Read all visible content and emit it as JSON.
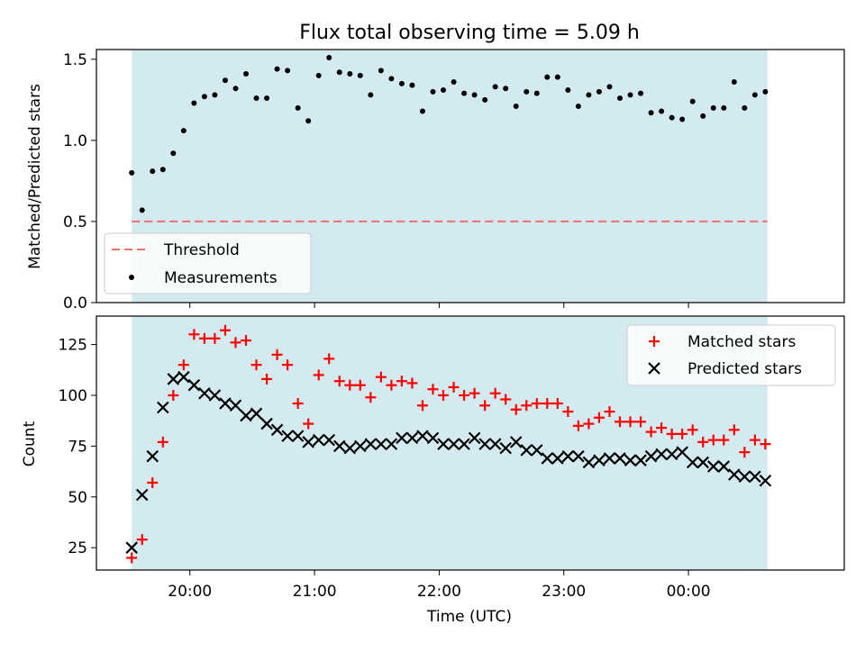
{
  "colors": {
    "shade": "#d4eaf1",
    "threshold": "#f07070",
    "measurements": "#000000",
    "matched": "#ff0000",
    "predicted": "#000000"
  },
  "chart_data": [
    {
      "type": "scatter",
      "title": "Flux total observing time = 5.09 h",
      "xlabel": "",
      "ylabel": "Matched/Predicted stars",
      "xlim": [
        "19:15",
        "01:15"
      ],
      "ylim": [
        0,
        1.56
      ],
      "shaded_span": [
        "19:32",
        "00:38"
      ],
      "yticks": [
        "0.0",
        "0.5",
        "1.0",
        "1.5"
      ],
      "legend_placement": "lower-left",
      "threshold": {
        "name": "Threshold",
        "value": 0.5
      },
      "series": [
        {
          "name": "Measurements",
          "x": [
            "19:32",
            "19:37",
            "19:42",
            "19:47",
            "19:52",
            "19:57",
            "20:02",
            "20:07",
            "20:12",
            "20:17",
            "20:22",
            "20:27",
            "20:32",
            "20:37",
            "20:42",
            "20:47",
            "20:52",
            "20:57",
            "21:02",
            "21:07",
            "21:12",
            "21:17",
            "21:22",
            "21:27",
            "21:32",
            "21:37",
            "21:42",
            "21:47",
            "21:52",
            "21:57",
            "22:02",
            "22:07",
            "22:12",
            "22:17",
            "22:22",
            "22:27",
            "22:32",
            "22:37",
            "22:42",
            "22:47",
            "22:52",
            "22:57",
            "23:02",
            "23:07",
            "23:12",
            "23:17",
            "23:22",
            "23:27",
            "23:32",
            "23:37",
            "23:42",
            "23:47",
            "23:52",
            "23:57",
            "00:02",
            "00:07",
            "00:12",
            "00:17",
            "00:22",
            "00:27",
            "00:32",
            "00:37"
          ],
          "y": [
            0.8,
            0.57,
            0.81,
            0.82,
            0.92,
            1.06,
            1.23,
            1.27,
            1.28,
            1.37,
            1.32,
            1.41,
            1.26,
            1.26,
            1.44,
            1.43,
            1.2,
            1.12,
            1.4,
            1.51,
            1.42,
            1.41,
            1.4,
            1.28,
            1.43,
            1.38,
            1.35,
            1.34,
            1.18,
            1.3,
            1.31,
            1.36,
            1.29,
            1.28,
            1.25,
            1.33,
            1.32,
            1.21,
            1.3,
            1.29,
            1.39,
            1.39,
            1.31,
            1.21,
            1.28,
            1.3,
            1.33,
            1.26,
            1.28,
            1.29,
            1.17,
            1.18,
            1.14,
            1.13,
            1.24,
            1.15,
            1.2,
            1.2,
            1.36,
            1.2,
            1.28,
            1.3
          ]
        }
      ]
    },
    {
      "type": "scatter",
      "title": "",
      "xlabel": "Time (UTC)",
      "ylabel": "Count",
      "xlim": [
        "19:15",
        "01:15"
      ],
      "ylim": [
        14,
        139
      ],
      "shaded_span": [
        "19:32",
        "00:38"
      ],
      "xticks": [
        "20:00",
        "21:00",
        "22:00",
        "23:00",
        "00:00"
      ],
      "yticks": [
        "25",
        "50",
        "75",
        "100",
        "125"
      ],
      "legend_placement": "upper-right",
      "x": [
        "19:32",
        "19:37",
        "19:42",
        "19:47",
        "19:52",
        "19:57",
        "20:02",
        "20:07",
        "20:12",
        "20:17",
        "20:22",
        "20:27",
        "20:32",
        "20:37",
        "20:42",
        "20:47",
        "20:52",
        "20:57",
        "21:02",
        "21:07",
        "21:12",
        "21:17",
        "21:22",
        "21:27",
        "21:32",
        "21:37",
        "21:42",
        "21:47",
        "21:52",
        "21:57",
        "22:02",
        "22:07",
        "22:12",
        "22:17",
        "22:22",
        "22:27",
        "22:32",
        "22:37",
        "22:42",
        "22:47",
        "22:52",
        "22:57",
        "23:02",
        "23:07",
        "23:12",
        "23:17",
        "23:22",
        "23:27",
        "23:32",
        "23:37",
        "23:42",
        "23:47",
        "23:52",
        "23:57",
        "00:02",
        "00:07",
        "00:12",
        "00:17",
        "00:22",
        "00:27",
        "00:32",
        "00:37"
      ],
      "series": [
        {
          "name": "Matched stars",
          "marker": "plus",
          "values": [
            20,
            29,
            57,
            77,
            100,
            115,
            130,
            128,
            128,
            132,
            126,
            127,
            115,
            108,
            120,
            115,
            96,
            86,
            110,
            118,
            107,
            105,
            105,
            99,
            109,
            105,
            107,
            106,
            95,
            103,
            100,
            104,
            100,
            101,
            95,
            101,
            98,
            93,
            95,
            96,
            96,
            96,
            92,
            85,
            86,
            89,
            92,
            87,
            87,
            87,
            82,
            84,
            81,
            81,
            83,
            77,
            78,
            78,
            83,
            72,
            78,
            76
          ]
        },
        {
          "name": "Predicted stars",
          "marker": "x",
          "values": [
            25,
            51,
            70,
            94,
            108,
            109,
            105,
            101,
            100,
            96,
            95,
            90,
            91,
            86,
            83,
            80,
            80,
            77,
            78,
            78,
            75,
            74,
            75,
            76,
            76,
            76,
            79,
            79,
            80,
            79,
            76,
            76,
            76,
            79,
            76,
            76,
            74,
            77,
            73,
            73,
            69,
            69,
            70,
            70,
            67,
            68,
            69,
            69,
            68,
            68,
            70,
            71,
            71,
            72,
            67,
            67,
            65,
            65,
            61,
            60,
            60,
            58
          ]
        }
      ]
    }
  ]
}
